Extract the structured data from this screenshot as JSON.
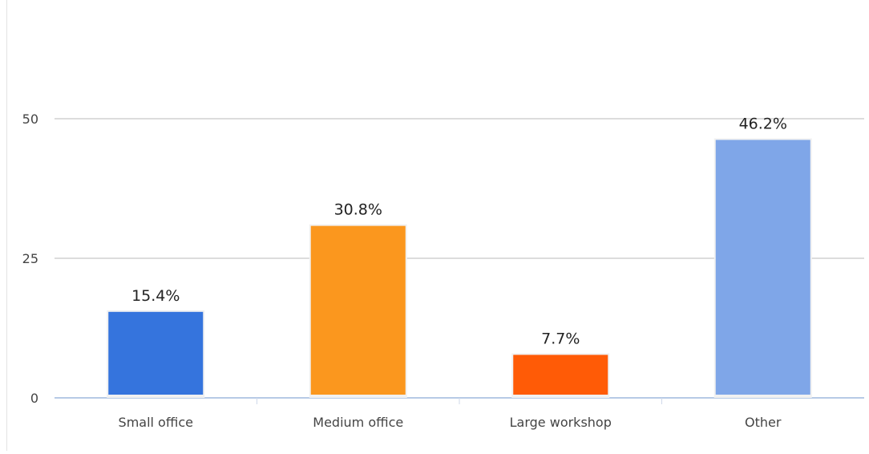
{
  "chart_data": {
    "type": "bar",
    "categories": [
      "Small office",
      "Medium office",
      "Large workshop",
      "Other"
    ],
    "values": [
      15.4,
      30.8,
      7.7,
      46.2
    ],
    "data_labels": [
      "15.4%",
      "30.8%",
      "7.7%",
      "46.2%"
    ],
    "colors": [
      "#3574DD",
      "#FB971E",
      "#FF5B06",
      "#7FA6E8"
    ],
    "yticks": [
      0,
      25,
      50
    ],
    "ylim": [
      0,
      50
    ],
    "grid": true,
    "legend": "none",
    "title": "",
    "xlabel": "",
    "ylabel": ""
  }
}
